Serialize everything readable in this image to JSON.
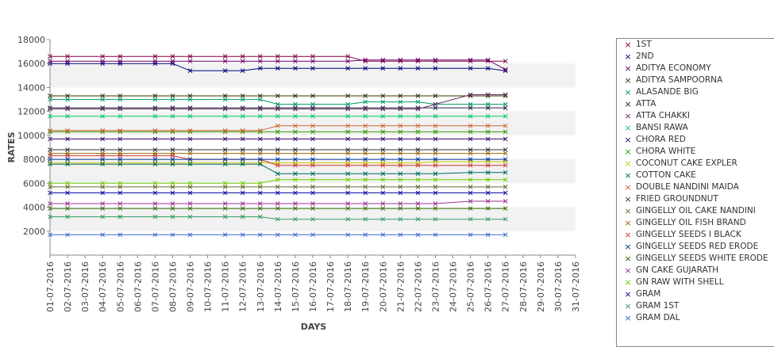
{
  "chart_data": {
    "type": "line",
    "title": "",
    "xlabel": "DAYS",
    "ylabel": "RATES",
    "ylim": [
      0,
      18000
    ],
    "yticks": [
      2000,
      4000,
      6000,
      8000,
      10000,
      12000,
      14000,
      16000,
      18000
    ],
    "x": [
      "01-07-2016",
      "02-07-2016",
      "03-07-2016",
      "04-07-2016",
      "05-07-2016",
      "06-07-2016",
      "07-07-2016",
      "08-07-2016",
      "09-07-2016",
      "10-07-2016",
      "11-07-2016",
      "12-07-2016",
      "13-07-2016",
      "14-07-2016",
      "15-07-2016",
      "16-07-2016",
      "17-07-2016",
      "18-07-2016",
      "19-07-2016",
      "20-07-2016",
      "21-07-2016",
      "22-07-2016",
      "23-07-2016",
      "24-07-2016",
      "25-07-2016",
      "26-07-2016",
      "27-07-2016",
      "28-07-2016",
      "29-07-2016",
      "30-07-2016",
      "31-07-2016"
    ],
    "legend_position": "right",
    "grid": "alternating horizontal bands",
    "series": [
      {
        "name": "1ST",
        "color": "#800040",
        "values": [
          16600,
          16600,
          null,
          16600,
          16600,
          null,
          16600,
          16600,
          16600,
          null,
          16600,
          16600,
          16600,
          16600,
          16600,
          16600,
          null,
          16600,
          16200,
          16200,
          16200,
          16200,
          16200,
          null,
          16200,
          16200,
          16200,
          null,
          null,
          null,
          null
        ]
      },
      {
        "name": "2ND",
        "color": "#000080",
        "values": [
          16000,
          16000,
          null,
          16000,
          16000,
          null,
          16000,
          16000,
          15400,
          null,
          15400,
          15400,
          15600,
          15600,
          15600,
          15600,
          null,
          15600,
          15600,
          15600,
          15600,
          15600,
          15600,
          null,
          15600,
          15600,
          15400,
          null,
          null,
          null,
          null
        ]
      },
      {
        "name": "ADITYA ECONOMY",
        "color": "#660066",
        "values": [
          16200,
          16200,
          null,
          16200,
          16200,
          null,
          16200,
          16200,
          16200,
          null,
          16200,
          16200,
          16200,
          16200,
          16200,
          16200,
          null,
          16200,
          16300,
          16300,
          16300,
          16300,
          16300,
          null,
          16300,
          16300,
          15500,
          null,
          null,
          null,
          null
        ]
      },
      {
        "name": "ADITYA SAMPOORNA",
        "color": "#333300",
        "values": [
          13300,
          13300,
          null,
          13300,
          13300,
          null,
          13300,
          13300,
          13300,
          null,
          13300,
          13300,
          13300,
          13300,
          13300,
          13300,
          null,
          13300,
          13300,
          13300,
          13300,
          13300,
          13300,
          null,
          13300,
          13300,
          13300,
          null,
          null,
          null,
          null
        ]
      },
      {
        "name": "ALASANDE BIG",
        "color": "#009966",
        "values": [
          13000,
          13000,
          null,
          13000,
          13000,
          null,
          13000,
          13000,
          13000,
          null,
          13000,
          13000,
          13000,
          12600,
          12600,
          12600,
          null,
          12600,
          12800,
          12800,
          12800,
          12800,
          12600,
          null,
          12600,
          12600,
          12600,
          null,
          null,
          null,
          null
        ]
      },
      {
        "name": "ATTA",
        "color": "#222244",
        "values": [
          12300,
          12300,
          null,
          12300,
          12300,
          null,
          12300,
          12300,
          12300,
          null,
          12300,
          12300,
          12300,
          12300,
          12300,
          12300,
          null,
          12300,
          12300,
          12300,
          12300,
          12300,
          12300,
          null,
          12300,
          12300,
          12300,
          null,
          null,
          null,
          null
        ]
      },
      {
        "name": "ATTA CHAKKI",
        "color": "#663366",
        "values": [
          12200,
          12200,
          null,
          12200,
          12200,
          null,
          12200,
          12200,
          12200,
          null,
          12200,
          12200,
          12200,
          12200,
          12200,
          12200,
          null,
          12200,
          12200,
          12200,
          12200,
          12200,
          12600,
          null,
          13400,
          13400,
          13400,
          null,
          null,
          null,
          null
        ]
      },
      {
        "name": "BANSI RAWA",
        "color": "#00cc66",
        "values": [
          11600,
          11600,
          null,
          11600,
          11600,
          null,
          11600,
          11600,
          11600,
          null,
          11600,
          11600,
          11600,
          11600,
          11600,
          11600,
          null,
          11600,
          11600,
          11600,
          11600,
          11600,
          11600,
          null,
          11600,
          11600,
          11600,
          null,
          null,
          null,
          null
        ]
      },
      {
        "name": "CHORA RED",
        "color": "#330066",
        "values": [
          9700,
          9700,
          null,
          9700,
          9700,
          null,
          9700,
          9700,
          9700,
          null,
          9700,
          9700,
          9700,
          9700,
          9700,
          9700,
          null,
          9700,
          9700,
          9700,
          9700,
          9700,
          9700,
          null,
          9700,
          9700,
          9700,
          null,
          null,
          null,
          null
        ]
      },
      {
        "name": "CHORA WHITE",
        "color": "#339900",
        "values": [
          10300,
          10300,
          null,
          10300,
          10300,
          null,
          10300,
          10300,
          10300,
          null,
          10300,
          10300,
          10300,
          10300,
          10300,
          10300,
          null,
          10300,
          10300,
          10300,
          10300,
          10300,
          10300,
          null,
          10300,
          10300,
          10300,
          null,
          null,
          null,
          null
        ]
      },
      {
        "name": "COCONUT CAKE EXPLER",
        "color": "#cccc00",
        "values": [
          7700,
          7700,
          null,
          7700,
          7700,
          null,
          7700,
          7700,
          7700,
          null,
          7700,
          7700,
          7700,
          7700,
          7700,
          7700,
          null,
          7700,
          7700,
          7700,
          7700,
          7700,
          7800,
          null,
          7800,
          7800,
          7800,
          null,
          null,
          null,
          null
        ]
      },
      {
        "name": "COTTON CAKE",
        "color": "#006666",
        "values": [
          7600,
          7600,
          null,
          7600,
          7600,
          null,
          7600,
          7600,
          7600,
          null,
          7600,
          7600,
          7600,
          6800,
          6800,
          6800,
          null,
          6800,
          6800,
          6800,
          6800,
          6800,
          6800,
          null,
          6900,
          6900,
          6900,
          null,
          null,
          null,
          null
        ]
      },
      {
        "name": "DOUBLE NANDINI MAIDA",
        "color": "#cc6633",
        "values": [
          10400,
          10400,
          null,
          10400,
          10400,
          null,
          10400,
          10400,
          10400,
          null,
          10400,
          10400,
          10400,
          10800,
          10800,
          10800,
          null,
          10800,
          10800,
          10800,
          10800,
          10800,
          10800,
          null,
          10800,
          10800,
          10800,
          null,
          null,
          null,
          null
        ]
      },
      {
        "name": "FRIED GROUNDNUT",
        "color": "#333333",
        "values": [
          8800,
          8800,
          null,
          8800,
          8800,
          null,
          8800,
          8800,
          8800,
          null,
          8800,
          8800,
          8800,
          8800,
          8800,
          8800,
          null,
          8800,
          8800,
          8800,
          8800,
          8800,
          8800,
          null,
          8800,
          8800,
          8800,
          null,
          null,
          null,
          null
        ]
      },
      {
        "name": "GINGELLY OIL CAKE NANDINI",
        "color": "#666633",
        "values": [
          5700,
          5700,
          null,
          5700,
          5700,
          null,
          5700,
          5700,
          5700,
          null,
          5700,
          5700,
          5700,
          5700,
          5700,
          5700,
          null,
          5700,
          5700,
          5700,
          5700,
          5700,
          5700,
          null,
          5700,
          5700,
          5700,
          null,
          null,
          null,
          null
        ]
      },
      {
        "name": "GINGELLY OIL FISH BRAND",
        "color": "#996600",
        "values": [
          8500,
          8500,
          null,
          8500,
          8500,
          null,
          8500,
          8500,
          8500,
          null,
          8500,
          8500,
          8500,
          8500,
          8500,
          8500,
          null,
          8500,
          8500,
          8500,
          8500,
          8500,
          8500,
          null,
          8500,
          8500,
          8500,
          null,
          null,
          null,
          null
        ]
      },
      {
        "name": "GINGELLY SEEDS I BLACK",
        "color": "#cc3333",
        "values": [
          8300,
          8300,
          null,
          8300,
          8300,
          null,
          8300,
          8300,
          8000,
          null,
          8000,
          8000,
          8000,
          7500,
          7500,
          7500,
          null,
          7500,
          7500,
          7500,
          7500,
          7500,
          7500,
          null,
          7500,
          7500,
          7500,
          null,
          null,
          null,
          null
        ]
      },
      {
        "name": "GINGELLY SEEDS RED ERODE",
        "color": "#003399",
        "values": [
          8000,
          8000,
          null,
          8000,
          8000,
          null,
          8000,
          8000,
          8000,
          null,
          8000,
          8000,
          8000,
          8000,
          8000,
          8000,
          null,
          8000,
          8000,
          8000,
          8000,
          8000,
          8000,
          null,
          8000,
          8000,
          8000,
          null,
          null,
          null,
          null
        ]
      },
      {
        "name": "GINGELLY SEEDS WHITE ERODE",
        "color": "#336600",
        "values": [
          3900,
          3900,
          null,
          3900,
          3900,
          null,
          3900,
          3900,
          3900,
          null,
          3900,
          3900,
          3900,
          3900,
          3900,
          3900,
          null,
          3900,
          3900,
          3900,
          3900,
          3900,
          3900,
          null,
          3900,
          3900,
          3900,
          null,
          null,
          null,
          null
        ]
      },
      {
        "name": "GN CAKE GUJARATH",
        "color": "#993399",
        "values": [
          4300,
          4300,
          null,
          4300,
          4300,
          null,
          4300,
          4300,
          4300,
          null,
          4300,
          4300,
          4300,
          4300,
          4300,
          4300,
          null,
          4300,
          4300,
          4300,
          4300,
          4300,
          4300,
          null,
          4500,
          4500,
          4500,
          null,
          null,
          null,
          null
        ]
      },
      {
        "name": "GN RAW WITH SHELL",
        "color": "#66cc00",
        "values": [
          6000,
          6000,
          null,
          6000,
          6000,
          null,
          6000,
          6000,
          6000,
          null,
          6000,
          6000,
          6000,
          6300,
          6300,
          6300,
          null,
          6300,
          6300,
          6300,
          6300,
          6300,
          6300,
          null,
          6300,
          6300,
          6300,
          null,
          null,
          null,
          null
        ]
      },
      {
        "name": "GRAM",
        "color": "#000099",
        "values": [
          5200,
          5200,
          null,
          5200,
          5200,
          null,
          5200,
          5200,
          5200,
          null,
          5200,
          5200,
          5200,
          5200,
          5200,
          5200,
          null,
          5200,
          5200,
          5200,
          5200,
          5200,
          5200,
          null,
          5200,
          5200,
          5200,
          null,
          null,
          null,
          null
        ]
      },
      {
        "name": "GRAM 1ST",
        "color": "#339966",
        "values": [
          3200,
          3200,
          null,
          3200,
          3200,
          null,
          3200,
          3200,
          3200,
          null,
          3200,
          3200,
          3200,
          3000,
          3000,
          3000,
          null,
          3000,
          3000,
          3000,
          3000,
          3000,
          3000,
          null,
          3000,
          3000,
          3000,
          null,
          null,
          null,
          null
        ]
      },
      {
        "name": "GRAM DAL",
        "color": "#3366cc",
        "values": [
          1700,
          1700,
          null,
          1700,
          1700,
          null,
          1700,
          1700,
          1700,
          null,
          1700,
          1700,
          1700,
          1700,
          1700,
          1700,
          null,
          1700,
          1700,
          1700,
          1700,
          1700,
          1700,
          null,
          1700,
          1700,
          1700,
          null,
          null,
          null,
          null
        ]
      }
    ]
  }
}
